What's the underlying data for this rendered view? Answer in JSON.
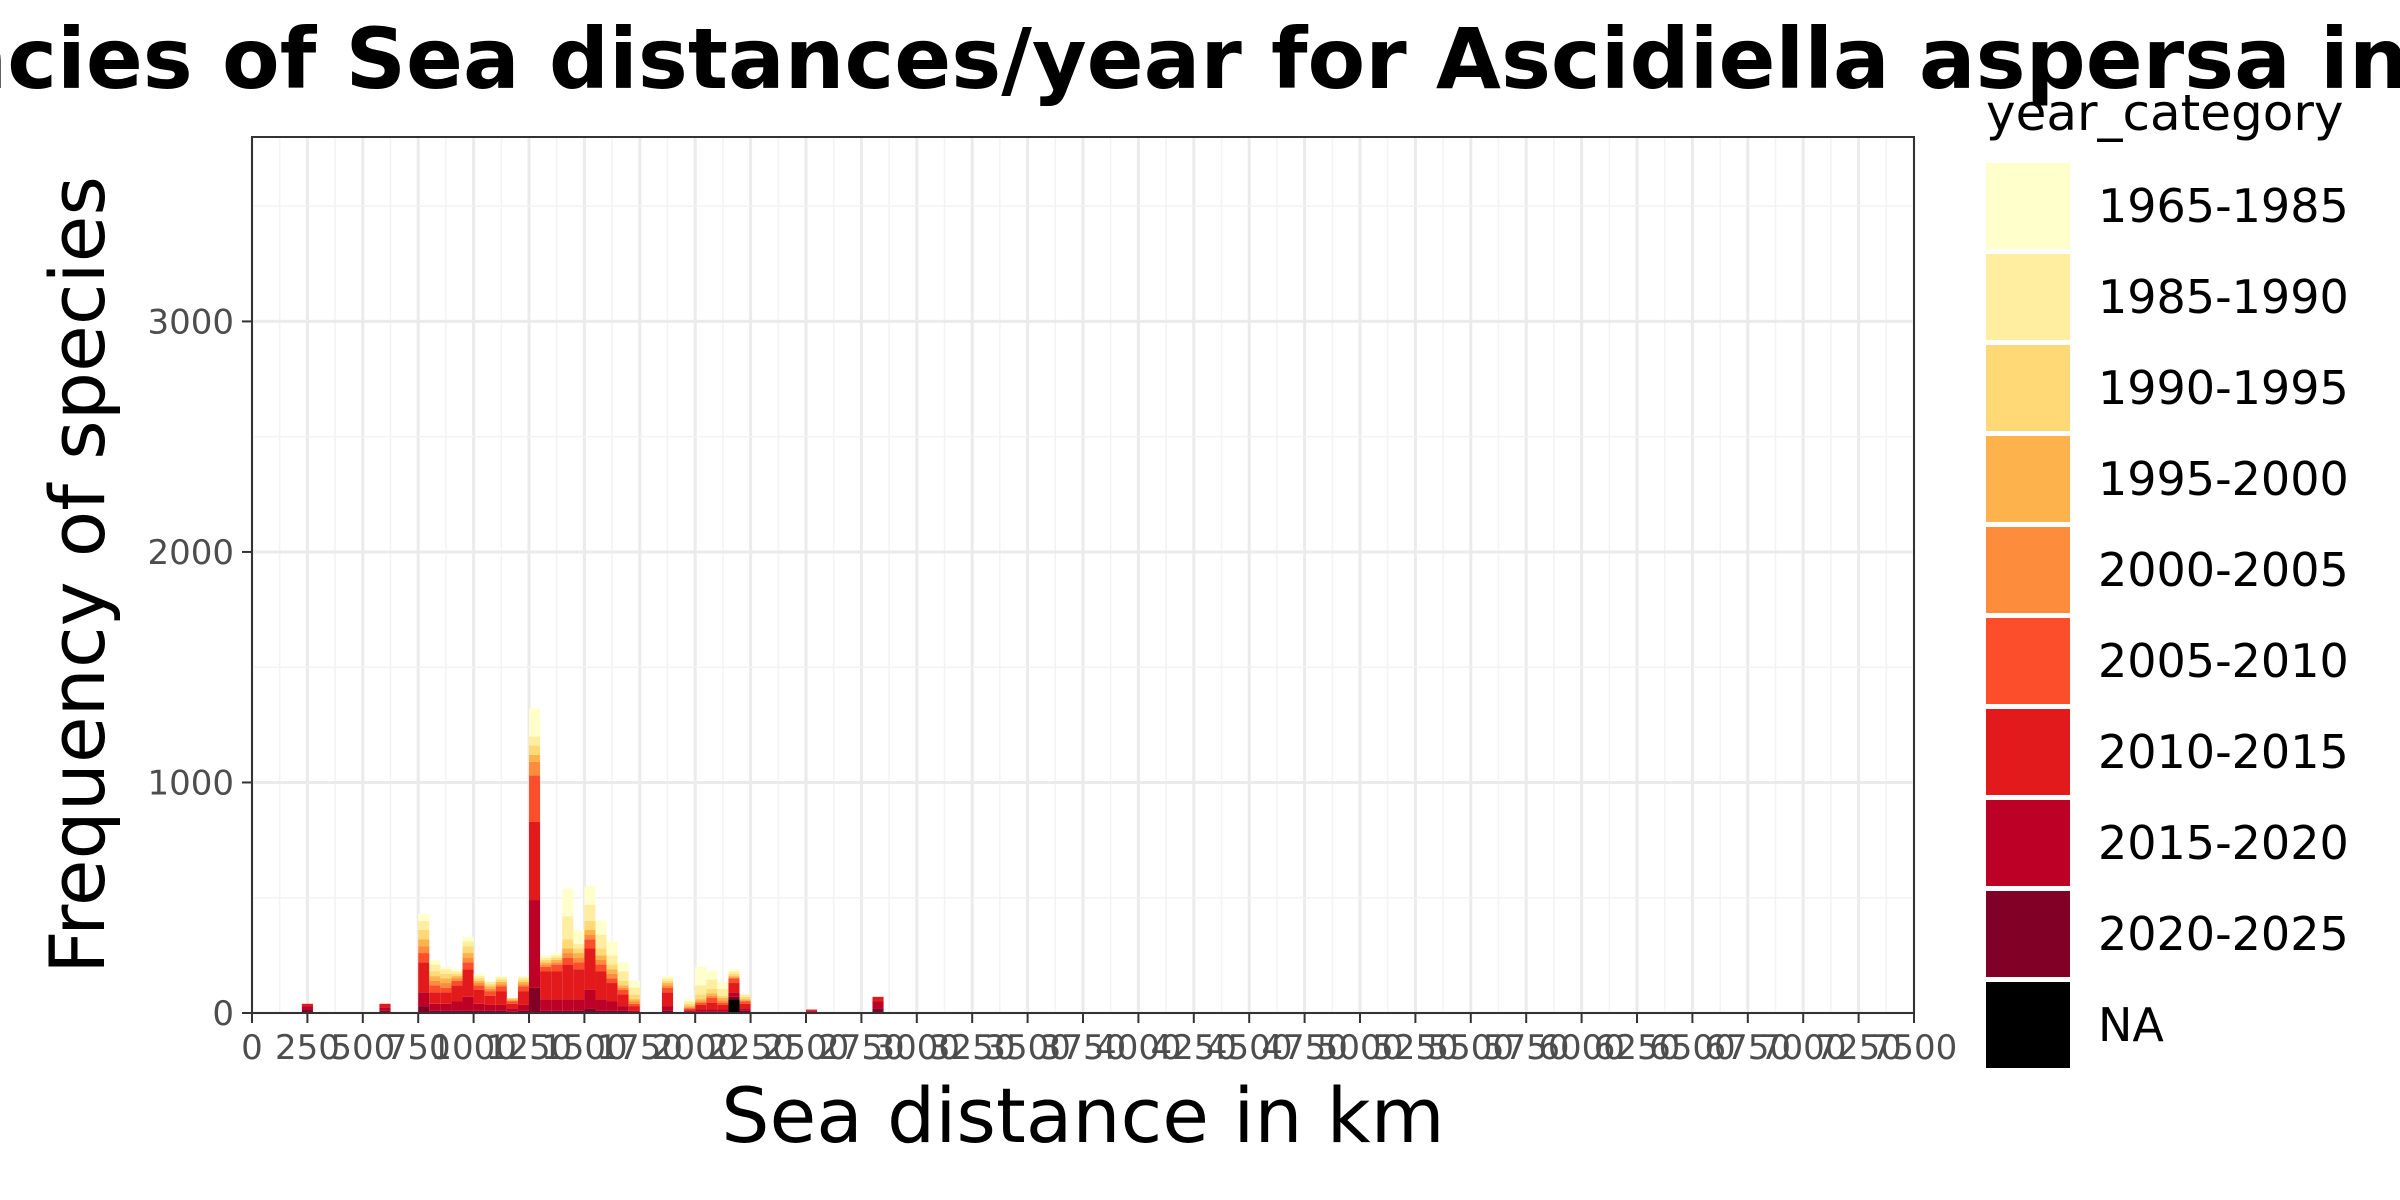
{
  "chart_data": {
    "type": "bar",
    "stacked": true,
    "title": "Frequencies of Sea distances/year for Ascidiella aspersa in Getxo",
    "xlabel": "Sea distance in km",
    "ylabel": "Frequency of species",
    "xlim": [
      0,
      7500
    ],
    "ylim": [
      0,
      3800
    ],
    "x_ticks": [
      0,
      250,
      500,
      750,
      1000,
      1250,
      1500,
      1750,
      2000,
      2250,
      2500,
      2750,
      3000,
      3250,
      3500,
      3750,
      4000,
      4250,
      4500,
      4750,
      5000,
      5250,
      5500,
      5750,
      6000,
      6250,
      6500,
      6750,
      7000,
      7250,
      7500
    ],
    "y_ticks": [
      0,
      1000,
      2000,
      3000
    ],
    "grid": true,
    "bin_width": 50,
    "legend": {
      "title": "year_category",
      "position": "right",
      "entries": [
        {
          "label": "1965-1985",
          "color": "#FFFFCC"
        },
        {
          "label": "1985-1990",
          "color": "#FFEDA0"
        },
        {
          "label": "1990-1995",
          "color": "#FED976"
        },
        {
          "label": "1995-2000",
          "color": "#FEB24C"
        },
        {
          "label": "2000-2005",
          "color": "#FD8D3C"
        },
        {
          "label": "2005-2010",
          "color": "#FC4E2A"
        },
        {
          "label": "2010-2015",
          "color": "#E31A1C"
        },
        {
          "label": "2015-2020",
          "color": "#BD0026"
        },
        {
          "label": "2020-2025",
          "color": "#800026"
        },
        {
          "label": "NA",
          "color": "#000000"
        }
      ]
    },
    "bins": [
      {
        "x": 225,
        "stack": [
          0,
          0,
          0,
          0,
          0,
          0,
          10,
          15,
          15,
          0
        ]
      },
      {
        "x": 575,
        "stack": [
          0,
          0,
          0,
          0,
          0,
          0,
          15,
          15,
          10,
          0
        ]
      },
      {
        "x": 750,
        "stack": [
          30,
          40,
          40,
          30,
          30,
          40,
          130,
          60,
          30,
          0
        ]
      },
      {
        "x": 800,
        "stack": [
          20,
          30,
          20,
          20,
          20,
          30,
          50,
          30,
          10,
          0
        ]
      },
      {
        "x": 850,
        "stack": [
          10,
          20,
          20,
          20,
          20,
          20,
          50,
          30,
          10,
          0
        ]
      },
      {
        "x": 900,
        "stack": [
          10,
          10,
          10,
          10,
          10,
          20,
          70,
          40,
          10,
          0
        ]
      },
      {
        "x": 950,
        "stack": [
          20,
          20,
          30,
          20,
          20,
          30,
          120,
          60,
          10,
          0
        ]
      },
      {
        "x": 1000,
        "stack": [
          10,
          10,
          10,
          10,
          10,
          20,
          60,
          30,
          10,
          0
        ]
      },
      {
        "x": 1050,
        "stack": [
          5,
          10,
          10,
          10,
          10,
          20,
          40,
          25,
          10,
          0
        ]
      },
      {
        "x": 1100,
        "stack": [
          5,
          10,
          10,
          10,
          10,
          20,
          60,
          25,
          10,
          0
        ]
      },
      {
        "x": 1150,
        "stack": [
          0,
          0,
          5,
          5,
          5,
          10,
          20,
          15,
          5,
          0
        ]
      },
      {
        "x": 1200,
        "stack": [
          5,
          10,
          10,
          10,
          10,
          20,
          60,
          25,
          10,
          0
        ]
      },
      {
        "x": 1250,
        "stack": [
          120,
          40,
          40,
          30,
          60,
          200,
          340,
          380,
          110,
          0
        ]
      },
      {
        "x": 1300,
        "stack": [
          10,
          10,
          10,
          10,
          10,
          20,
          120,
          50,
          10,
          0
        ]
      },
      {
        "x": 1350,
        "stack": [
          10,
          10,
          10,
          10,
          10,
          30,
          120,
          50,
          10,
          0
        ]
      },
      {
        "x": 1400,
        "stack": [
          120,
          100,
          40,
          20,
          20,
          30,
          150,
          50,
          10,
          0
        ]
      },
      {
        "x": 1450,
        "stack": [
          60,
          20,
          20,
          20,
          20,
          30,
          130,
          50,
          10,
          0
        ]
      },
      {
        "x": 1500,
        "stack": [
          80,
          70,
          40,
          20,
          20,
          40,
          180,
          80,
          20,
          0
        ]
      },
      {
        "x": 1550,
        "stack": [
          60,
          60,
          30,
          20,
          20,
          30,
          120,
          50,
          10,
          0
        ]
      },
      {
        "x": 1600,
        "stack": [
          60,
          40,
          20,
          20,
          20,
          20,
          80,
          40,
          10,
          0
        ]
      },
      {
        "x": 1650,
        "stack": [
          40,
          40,
          20,
          10,
          10,
          20,
          50,
          20,
          10,
          0
        ]
      },
      {
        "x": 1700,
        "stack": [
          30,
          30,
          20,
          10,
          10,
          10,
          20,
          10,
          0,
          0
        ]
      },
      {
        "x": 1850,
        "stack": [
          10,
          10,
          10,
          10,
          10,
          20,
          60,
          20,
          10,
          0
        ]
      },
      {
        "x": 1950,
        "stack": [
          10,
          10,
          10,
          5,
          5,
          5,
          5,
          5,
          5,
          0
        ]
      },
      {
        "x": 2000,
        "stack": [
          80,
          40,
          20,
          10,
          5,
          10,
          20,
          10,
          5,
          0
        ]
      },
      {
        "x": 2050,
        "stack": [
          40,
          40,
          20,
          10,
          10,
          20,
          30,
          10,
          5,
          0
        ]
      },
      {
        "x": 2100,
        "stack": [
          30,
          30,
          10,
          10,
          10,
          10,
          20,
          10,
          5,
          0
        ]
      },
      {
        "x": 2150,
        "stack": [
          10,
          10,
          10,
          5,
          5,
          20,
          40,
          20,
          10,
          60
        ]
      },
      {
        "x": 2200,
        "stack": [
          0,
          10,
          10,
          5,
          5,
          10,
          20,
          10,
          10,
          0
        ]
      },
      {
        "x": 2500,
        "stack": [
          0,
          0,
          0,
          0,
          0,
          0,
          5,
          5,
          5,
          0
        ]
      },
      {
        "x": 2800,
        "stack": [
          0,
          0,
          0,
          0,
          0,
          0,
          20,
          30,
          20,
          0
        ]
      }
    ]
  }
}
